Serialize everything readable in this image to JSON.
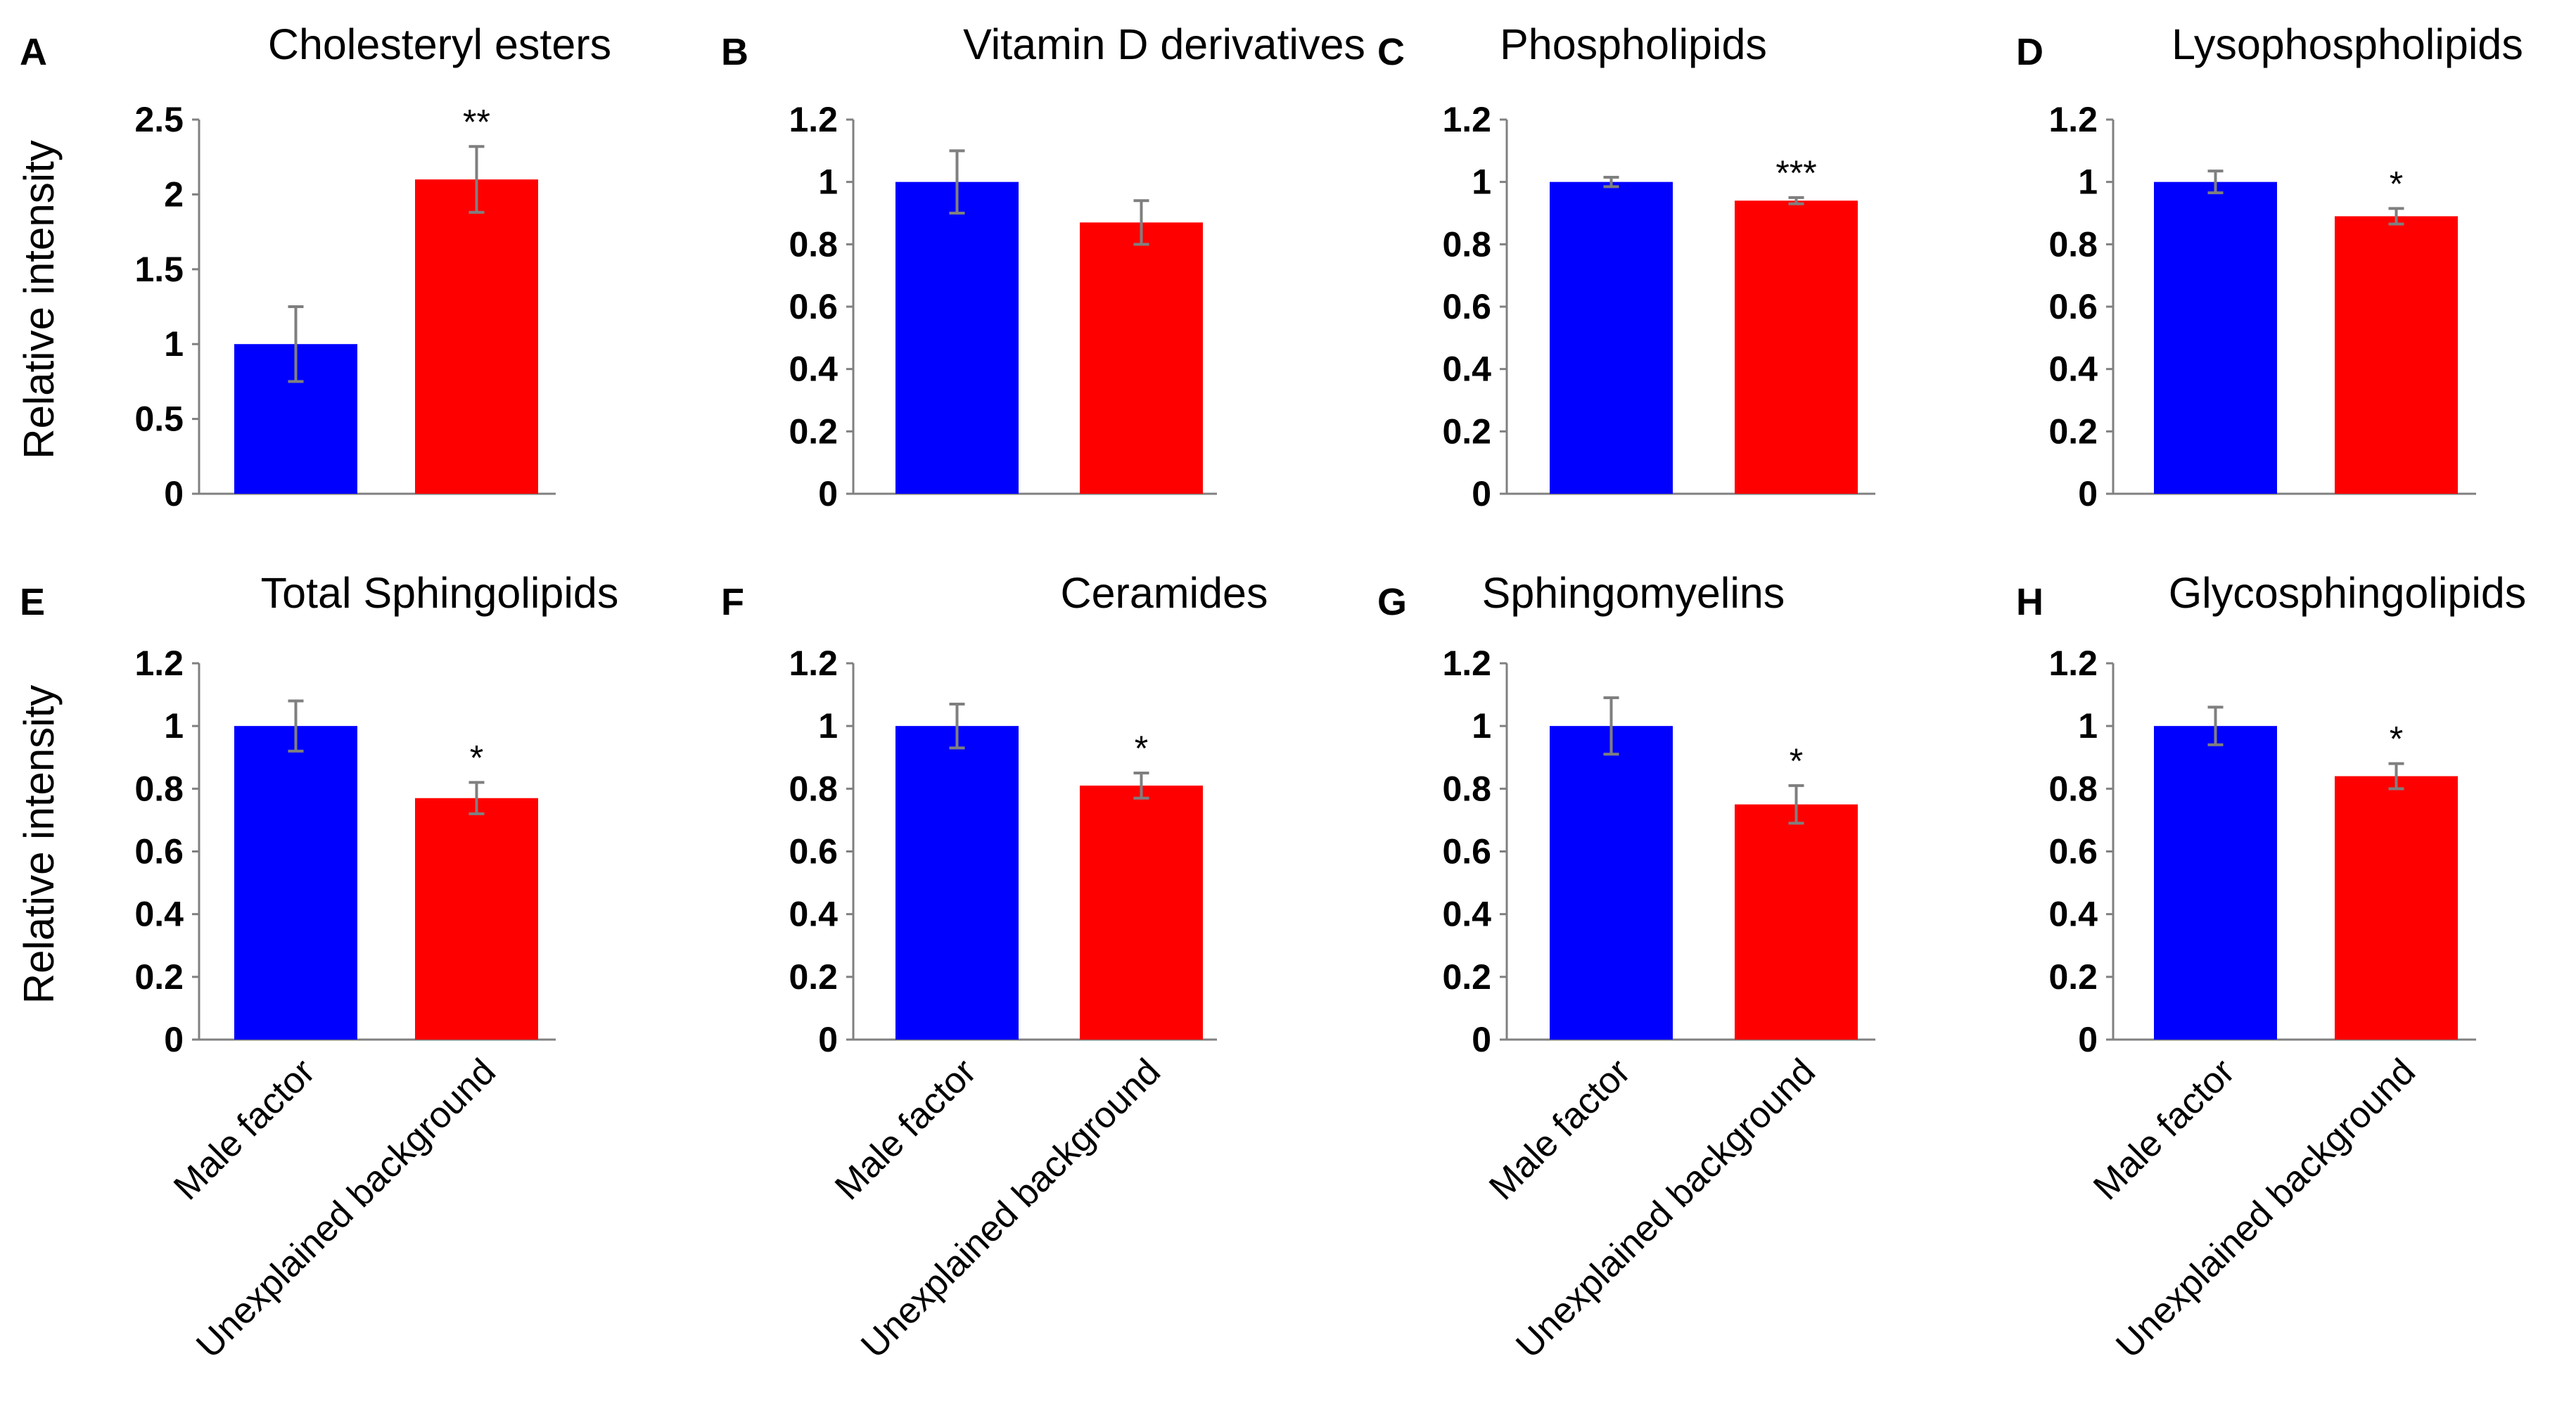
{
  "chart_data": {
    "type": "bar",
    "ylabel": "Relative intensity",
    "categories": [
      "Male factor",
      "Unexplained background"
    ],
    "colors": {
      "male_factor": "#0000ff",
      "unexplained_background": "#ff0000",
      "error_bar": "#7f7f7f",
      "axis": "#808080"
    },
    "panels": [
      {
        "letter": "A",
        "title": "Cholesteryl esters",
        "ylim": [
          0,
          2.5
        ],
        "ticks": [
          "0",
          "0.5",
          "1",
          "1.5",
          "2",
          "2.5"
        ],
        "values": [
          1.0,
          2.1
        ],
        "errors": [
          0.25,
          0.22
        ],
        "significance": [
          "",
          "**"
        ]
      },
      {
        "letter": "B",
        "title": "Vitamin D derivatives",
        "ylim": [
          0,
          1.2
        ],
        "ticks": [
          "0",
          "0.2",
          "0.4",
          "0.6",
          "0.8",
          "1",
          "1.2"
        ],
        "values": [
          1.0,
          0.87
        ],
        "errors": [
          0.1,
          0.07
        ],
        "significance": [
          "",
          ""
        ]
      },
      {
        "letter": "C",
        "title": "Phospholipids",
        "ylim": [
          0,
          1.2
        ],
        "ticks": [
          "0",
          "0.2",
          "0.4",
          "0.6",
          "0.8",
          "1",
          "1.2"
        ],
        "values": [
          1.0,
          0.94
        ],
        "errors": [
          0.015,
          0.01
        ],
        "significance": [
          "",
          "***"
        ]
      },
      {
        "letter": "D",
        "title": "Lysophospholipids",
        "ylim": [
          0,
          1.2
        ],
        "ticks": [
          "0",
          "0.2",
          "0.4",
          "0.6",
          "0.8",
          "1",
          "1.2"
        ],
        "values": [
          1.0,
          0.89
        ],
        "errors": [
          0.035,
          0.025
        ],
        "significance": [
          "",
          "*"
        ]
      },
      {
        "letter": "E",
        "title": "Total Sphingolipids",
        "ylim": [
          0,
          1.2
        ],
        "ticks": [
          "0",
          "0.2",
          "0.4",
          "0.6",
          "0.8",
          "1",
          "1.2"
        ],
        "values": [
          1.0,
          0.77
        ],
        "errors": [
          0.08,
          0.05
        ],
        "significance": [
          "",
          "*"
        ]
      },
      {
        "letter": "F",
        "title": "Ceramides",
        "ylim": [
          0,
          1.2
        ],
        "ticks": [
          "0",
          "0.2",
          "0.4",
          "0.6",
          "0.8",
          "1",
          "1.2"
        ],
        "values": [
          1.0,
          0.81
        ],
        "errors": [
          0.07,
          0.04
        ],
        "significance": [
          "",
          "*"
        ]
      },
      {
        "letter": "G",
        "title": "Sphingomyelins",
        "ylim": [
          0,
          1.2
        ],
        "ticks": [
          "0",
          "0.2",
          "0.4",
          "0.6",
          "0.8",
          "1",
          "1.2"
        ],
        "values": [
          1.0,
          0.75
        ],
        "errors": [
          0.09,
          0.06
        ],
        "significance": [
          "",
          "*"
        ]
      },
      {
        "letter": "H",
        "title": "Glycosphingolipids",
        "ylim": [
          0,
          1.2
        ],
        "ticks": [
          "0",
          "0.2",
          "0.4",
          "0.6",
          "0.8",
          "1",
          "1.2"
        ],
        "values": [
          1.0,
          0.84
        ],
        "errors": [
          0.06,
          0.04
        ],
        "significance": [
          "",
          "*"
        ]
      }
    ]
  }
}
